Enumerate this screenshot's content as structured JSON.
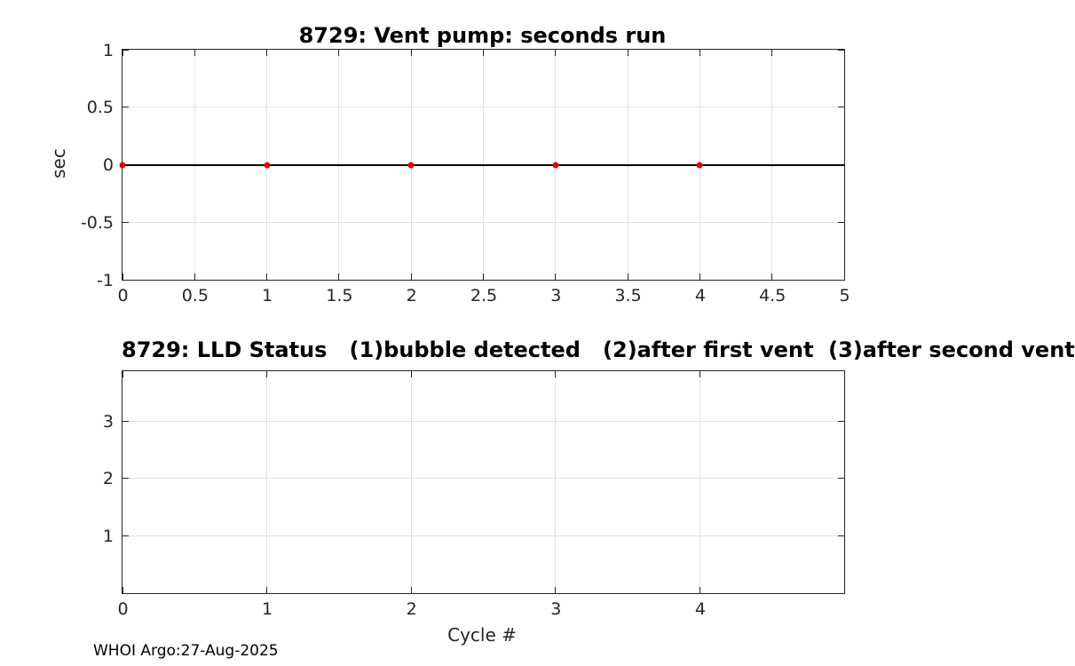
{
  "figure": {
    "footer": "WHOI Argo:27-Aug-2025"
  },
  "colors": {
    "axis": "#262626",
    "grid": "#e0e0e0",
    "marker_red": "#e80000",
    "zero_line": "#000000"
  },
  "chart_data": [
    {
      "type": "scatter",
      "title": "8729: Vent pump: seconds run",
      "xlabel": "",
      "ylabel": "sec",
      "xlim": [
        0,
        5
      ],
      "ylim": [
        -1,
        1
      ],
      "xticks": [
        0,
        0.5,
        1,
        1.5,
        2,
        2.5,
        3,
        3.5,
        4,
        4.5,
        5
      ],
      "yticks": [
        -1,
        -0.5,
        0,
        0.5,
        1
      ],
      "grid": true,
      "legend": null,
      "x": [
        0,
        1,
        2,
        3,
        4
      ],
      "y": [
        0,
        0,
        0,
        0,
        0
      ],
      "marker_color": "#e80000",
      "hline": {
        "y": 0,
        "color": "#000000"
      }
    },
    {
      "type": "scatter",
      "title": "8729: LLD Status   (1)bubble detected   (2)after first vent  (3)after second vent",
      "xlabel": "Cycle #",
      "ylabel": "",
      "xlim": [
        0,
        5
      ],
      "ylim": [
        0,
        3.87
      ],
      "xticks": [
        0,
        1,
        2,
        3,
        4
      ],
      "yticks": [
        1,
        2,
        3
      ],
      "grid": true,
      "legend": null,
      "x": [],
      "y": []
    }
  ]
}
